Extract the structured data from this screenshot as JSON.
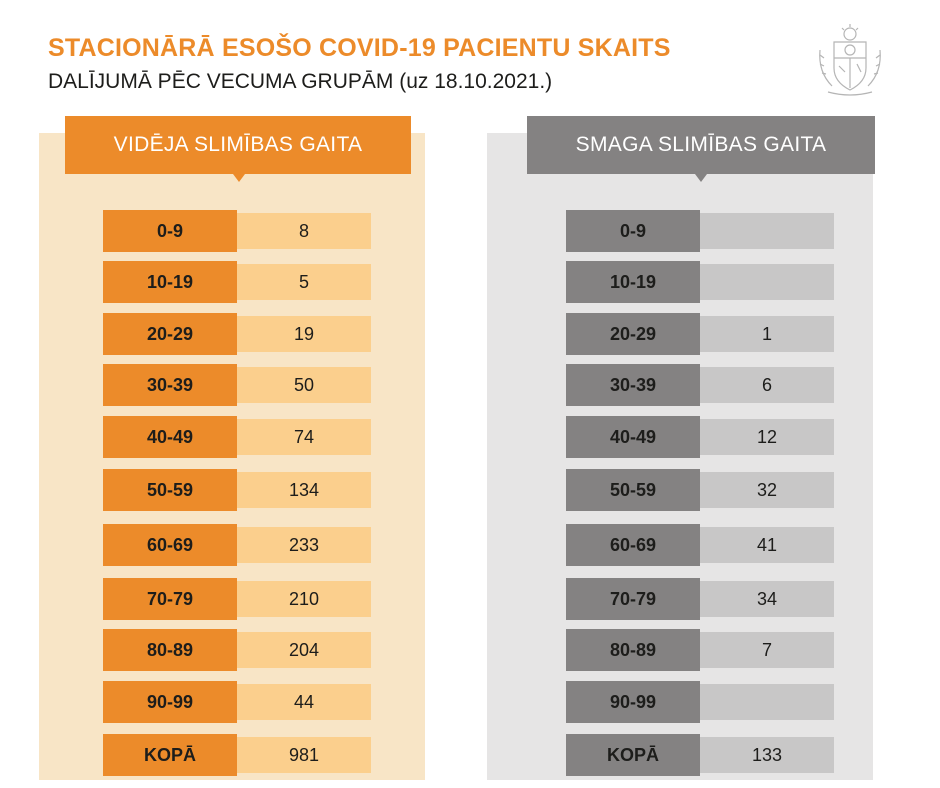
{
  "title": "STACIONĀRĀ ESOŠO COVID-19 PACIENTU SKAITS",
  "subtitle": "DALĪJUMĀ PĒC VECUMA GRUPĀM (uz 18.10.2021.)",
  "colors": {
    "orange": "#ec8b2a",
    "orange_light": "#fbcf8d",
    "orange_bg": "#f8e5c6",
    "gray": "#848282",
    "gray_light": "#c8c7c7",
    "gray_bg": "#e6e5e5"
  },
  "chart_data": {
    "type": "table",
    "title": "STACIONĀRĀ ESOŠO COVID-19 PACIENTU SKAITS",
    "subtitle": "DALĪJUMĀ PĒC VECUMA GRUPĀM (uz 18.10.2021.)",
    "categories": [
      "0-9",
      "10-19",
      "20-29",
      "30-39",
      "40-49",
      "50-59",
      "60-69",
      "70-79",
      "80-89",
      "90-99"
    ],
    "total_label": "KOPĀ",
    "series": [
      {
        "name": "VIDĒJA SLIMĪBAS GAITA",
        "values": [
          "8",
          "5",
          "19",
          "50",
          "74",
          "134",
          "233",
          "210",
          "204",
          "44"
        ],
        "total": "981"
      },
      {
        "name": "SMAGA SLIMĪBAS GAITA",
        "values": [
          "",
          "",
          "1",
          "6",
          "12",
          "32",
          "41",
          "34",
          "7",
          ""
        ],
        "total": "133"
      }
    ]
  }
}
